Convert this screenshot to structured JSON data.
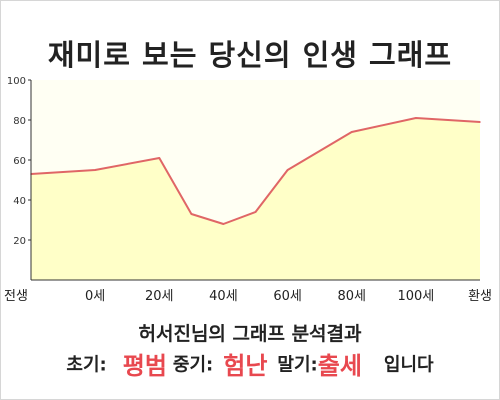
{
  "title": "재미로 보는 당신의 인생 그래프",
  "chart_data": {
    "type": "area",
    "x_categories": [
      "전생",
      "0세",
      "20세",
      "40세",
      "60세",
      "80세",
      "100세",
      "환생"
    ],
    "x": [
      0,
      1,
      2,
      2.5,
      3,
      3.5,
      4,
      5,
      6,
      7
    ],
    "y": [
      53,
      55,
      61,
      33,
      28,
      34,
      55,
      74,
      81,
      79
    ],
    "y_ticks": [
      20,
      40,
      60,
      80,
      100
    ],
    "ylim": [
      0,
      100
    ],
    "grid": false,
    "colors": {
      "line": "#e06666",
      "fill": "#ffffc8",
      "plot_bg": "#fffff3",
      "axis": "#333333"
    }
  },
  "result": {
    "title": "허서진님의 그래프 분석결과",
    "early_label": "초기:",
    "early_value": "평범",
    "middle_label": "중기:",
    "middle_value": "험난",
    "late_label": "말기:",
    "late_value": "출세",
    "suffix": "입니다",
    "value_color": "#e8484f"
  }
}
